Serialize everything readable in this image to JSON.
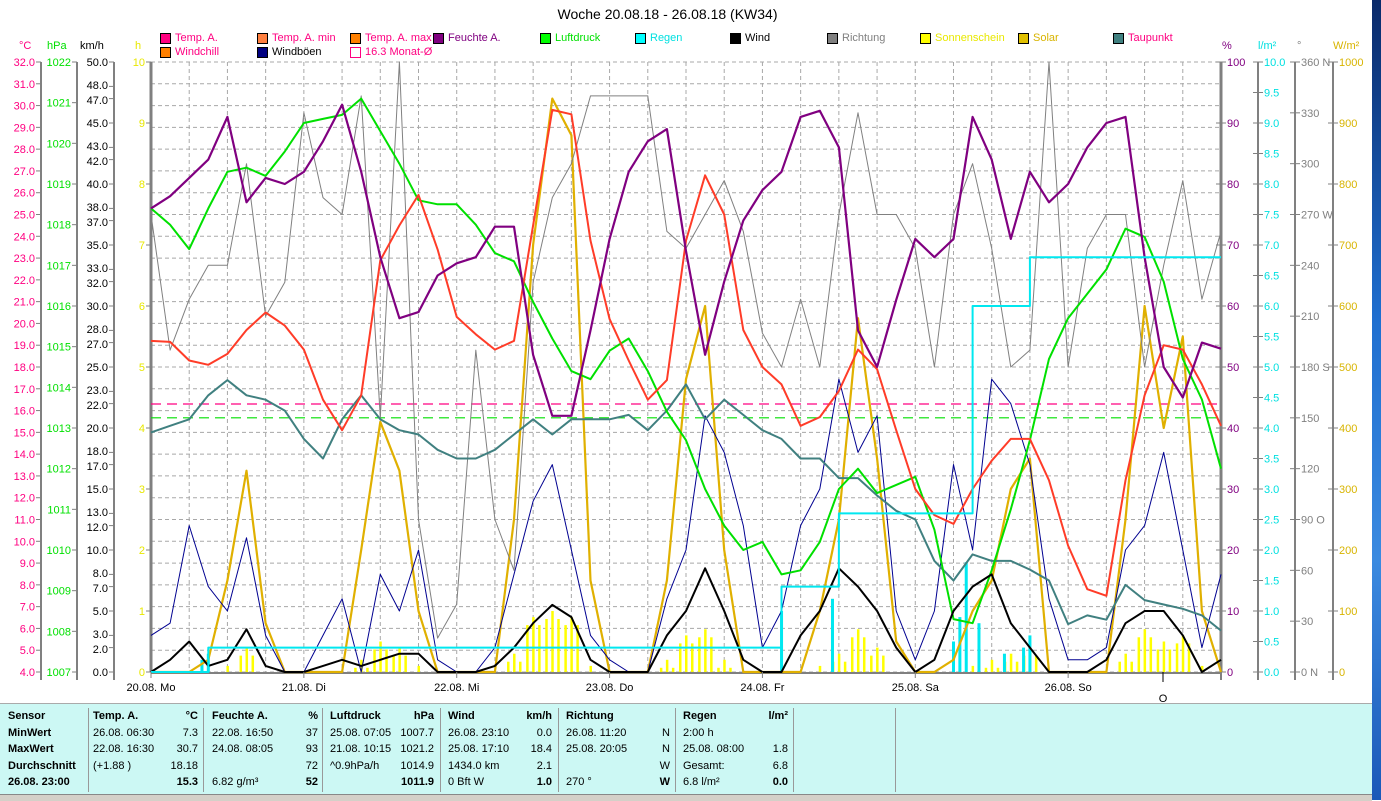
{
  "title": "Woche 20.08.18 - 26.08.18 (KW34)",
  "legend": [
    {
      "label": "Temp. A.",
      "swatch": "#ff0080",
      "text": "#ff0080"
    },
    {
      "label": "Temp. A. min",
      "swatch": "#ff8040",
      "text": "#ff0080"
    },
    {
      "label": "Temp. A. max",
      "swatch": "#ff8000",
      "text": "#ff0080"
    },
    {
      "label": "Feuchte A.",
      "swatch": "#800080",
      "text": "#800080"
    },
    {
      "label": "Luftdruck",
      "swatch": "#00ff00",
      "text": "#00e000"
    },
    {
      "label": "Regen",
      "swatch": "#00ffff",
      "text": "#00e0e0"
    },
    {
      "label": "Wind",
      "swatch": "#000000",
      "text": "#000000"
    },
    {
      "label": "Richtung",
      "swatch": "#808080",
      "text": "#808080"
    },
    {
      "label": "Sonnenschein",
      "swatch": "#ffff00",
      "text": "#e8e800"
    },
    {
      "label": "Solar",
      "swatch": "#e0c000",
      "text": "#d8b400"
    },
    {
      "label": "Taupunkt",
      "swatch": "#408080",
      "text": "#ff0080"
    },
    {
      "label": "Windchill",
      "swatch": "#ff8000",
      "text": "#ff0080"
    },
    {
      "label": "Windböen",
      "swatch": "#000080",
      "text": "#000000"
    },
    {
      "label": "16.3 Monat-Ø",
      "swatch": "#ffffff",
      "text": "#ff0080"
    }
  ],
  "chart_data": {
    "type": "line",
    "title": "Woche 20.08.18 - 26.08.18 (KW34)",
    "x_interval_hours": 3,
    "x_range_hours": [
      0,
      168
    ],
    "day_labels": [
      "20.08.  Mo",
      "21.08.  Di",
      "22.08.  Mi",
      "23.08.  Do",
      "24.08.  Fr",
      "25.08.  Sa",
      "26.08.  So"
    ],
    "marker": "O",
    "grid": true,
    "axes": [
      {
        "id": "temp",
        "unit": "°C",
        "min": 4,
        "max": 32,
        "color": "#ff0080",
        "ticks": [
          "32.0",
          "31.0",
          "30.0",
          "29.0",
          "28.0",
          "27.0",
          "26.0",
          "25.0",
          "24.0",
          "23.0",
          "22.0",
          "21.0",
          "20.0",
          "19.0",
          "18.0",
          "17.0",
          "16.0",
          "15.0",
          "14.0",
          "13.0",
          "12.0",
          "11.0",
          "10.0",
          "9.0",
          "8.0",
          "7.0",
          "6.0",
          "5.0",
          "4.0"
        ]
      },
      {
        "id": "pres",
        "unit": "hPa",
        "min": 1007,
        "max": 1022,
        "color": "#00e000",
        "ticks": [
          "1022",
          "1021",
          "1020",
          "1019",
          "1018",
          "1017",
          "1016",
          "1015",
          "1014",
          "1013",
          "1012",
          "1011",
          "1010",
          "1009",
          "1008",
          "1007"
        ]
      },
      {
        "id": "wind",
        "unit": "km/h",
        "min": 0,
        "max": 50,
        "color": "#000000",
        "ticks": [
          "50.0",
          "48.0",
          "47.0",
          "45.0",
          "43.0",
          "42.0",
          "40.0",
          "38.0",
          "37.0",
          "35.0",
          "33.0",
          "32.0",
          "30.0",
          "28.0",
          "27.0",
          "25.0",
          "23.0",
          "22.0",
          "20.0",
          "18.0",
          "17.0",
          "15.0",
          "13.0",
          "12.0",
          "10.0",
          "8.0",
          "7.0",
          "5.0",
          "3.0",
          "2.0",
          "0.0"
        ]
      },
      {
        "id": "sun",
        "unit": "h",
        "min": 0,
        "max": 10,
        "color": "#e8e800",
        "ticks": [
          "10",
          "9",
          "8",
          "7",
          "6",
          "5",
          "4",
          "3",
          "2",
          "1",
          "0"
        ]
      },
      {
        "id": "hum",
        "unit": "%",
        "min": 0,
        "max": 100,
        "color": "#800080",
        "ticks": [
          "100",
          "90",
          "80",
          "70",
          "60",
          "50",
          "40",
          "30",
          "20",
          "10",
          "0"
        ]
      },
      {
        "id": "rain",
        "unit": "l/m²",
        "min": 0,
        "max": 10,
        "color": "#00e0e0",
        "ticks": [
          "10.0",
          "9.5",
          "9.0",
          "8.5",
          "8.0",
          "7.5",
          "7.0",
          "6.5",
          "6.0",
          "5.5",
          "5.0",
          "4.5",
          "4.0",
          "3.5",
          "3.0",
          "2.5",
          "2.0",
          "1.5",
          "1.0",
          "0.5",
          "0.0"
        ]
      },
      {
        "id": "dir",
        "unit": "°",
        "min": 0,
        "max": 360,
        "color": "#808080",
        "ticks": [
          "360 N",
          "330",
          "300",
          "270 W",
          "240",
          "210",
          "180 S",
          "150",
          "120",
          "90  O",
          "60",
          "30",
          "0   N"
        ]
      },
      {
        "id": "solar",
        "unit": "W/m²",
        "min": 0,
        "max": 1000,
        "color": "#d8b400",
        "ticks": [
          "1000",
          "900",
          "800",
          "700",
          "600",
          "500",
          "400",
          "300",
          "200",
          "100",
          "0"
        ]
      }
    ],
    "reference_lines": [
      {
        "name": "Monat-Ø",
        "axis": "temp",
        "value": 16.3,
        "color": "#ff0080"
      },
      {
        "name": "Normaldruck",
        "axis": "pres",
        "value": 1013.25,
        "color": "#00e000"
      }
    ],
    "series": [
      {
        "name": "Solar",
        "axis": "solar",
        "color": "#e0b000",
        "width": 2.2,
        "values": [
          0,
          0,
          0,
          20,
          150,
          330,
          80,
          0,
          0,
          0,
          0,
          200,
          410,
          330,
          100,
          0,
          0,
          0,
          0,
          250,
          700,
          940,
          880,
          150,
          0,
          0,
          0,
          150,
          480,
          600,
          200,
          0,
          0,
          0,
          0,
          100,
          250,
          580,
          350,
          50,
          0,
          0,
          20,
          100,
          150,
          300,
          350,
          0,
          0,
          0,
          0,
          250,
          600,
          400,
          550,
          100,
          0
        ]
      },
      {
        "name": "Richtung",
        "axis": "dir",
        "color": "#808080",
        "width": 1,
        "values": [
          270,
          190,
          220,
          240,
          240,
          300,
          210,
          230,
          330,
          280,
          270,
          340,
          150,
          360,
          90,
          20,
          40,
          190,
          90,
          60,
          230,
          280,
          300,
          340,
          340,
          340,
          340,
          260,
          250,
          270,
          290,
          260,
          200,
          180,
          220,
          180,
          270,
          330,
          270,
          270,
          250,
          180,
          270,
          300,
          250,
          180,
          190,
          360,
          180,
          250,
          270,
          270,
          180,
          240,
          290,
          220,
          260
        ]
      },
      {
        "name": "Windböen",
        "axis": "wind",
        "color": "#000090",
        "width": 1,
        "values": [
          3,
          4,
          12,
          7,
          5,
          11,
          3,
          0,
          0,
          3,
          6,
          0,
          8,
          5,
          10,
          1,
          0,
          0,
          2,
          8,
          14,
          17,
          10,
          3,
          1,
          0,
          0,
          6,
          10,
          21,
          18,
          12,
          2,
          5,
          12,
          15,
          24,
          18,
          21,
          5,
          1,
          5,
          17,
          10,
          24,
          22,
          17,
          6,
          1,
          1,
          2,
          10,
          12,
          18,
          10,
          2,
          8
        ]
      },
      {
        "name": "Taupunkt",
        "axis": "temp",
        "color": "#408080",
        "width": 2,
        "values": [
          15.0,
          15.3,
          15.6,
          16.7,
          17.4,
          16.7,
          16.5,
          16.0,
          14.7,
          13.8,
          15.6,
          16.7,
          15.6,
          15.1,
          14.9,
          14.2,
          13.8,
          13.8,
          14.2,
          14.9,
          15.6,
          14.9,
          15.6,
          15.6,
          15.6,
          15.8,
          15.1,
          16.0,
          17.2,
          15.6,
          16.5,
          15.8,
          15.1,
          14.7,
          13.8,
          13.8,
          12.9,
          12.9,
          12.1,
          11.4,
          11.0,
          9.1,
          8.2,
          9.4,
          9.1,
          9.1,
          8.7,
          8.2,
          6.2,
          6.6,
          6.4,
          8.0,
          7.3,
          7.1,
          6.9,
          6.6,
          5.9
        ]
      },
      {
        "name": "Luftdruck",
        "axis": "pres",
        "color": "#00e000",
        "width": 2,
        "values": [
          1018.4,
          1018.0,
          1017.4,
          1018.4,
          1019.3,
          1019.4,
          1019.2,
          1019.8,
          1020.5,
          1020.6,
          1020.7,
          1021.1,
          1020.3,
          1019.5,
          1018.6,
          1018.5,
          1018.5,
          1018.0,
          1017.3,
          1017.1,
          1016.1,
          1015.2,
          1014.4,
          1014.2,
          1014.9,
          1015.2,
          1014.4,
          1013.4,
          1012.7,
          1011.5,
          1010.6,
          1010.0,
          1010.2,
          1009.4,
          1009.5,
          1010.2,
          1011.5,
          1012.0,
          1011.4,
          1011.6,
          1011.8,
          1010.5,
          1008.3,
          1008.2,
          1009.5,
          1011.0,
          1012.7,
          1014.7,
          1015.7,
          1016.3,
          1016.9,
          1017.9,
          1017.7,
          1016.6,
          1014.7,
          1013.7,
          1012.0
        ]
      },
      {
        "name": "Temp. A.",
        "axis": "temp",
        "color": "#ff3c28",
        "width": 2,
        "values": [
          19.2,
          19.15,
          18.3,
          18.1,
          18.6,
          19.7,
          20.5,
          19.9,
          18.8,
          16.5,
          15.1,
          16.7,
          22.9,
          24.5,
          25.9,
          23.4,
          20.3,
          19.5,
          18.8,
          19.2,
          24.5,
          29.8,
          29.6,
          23.8,
          20.2,
          18.3,
          16.5,
          17.4,
          23.8,
          26.8,
          25.0,
          19.7,
          18.0,
          17.2,
          15.3,
          15.7,
          16.9,
          18.8,
          17.9,
          15.1,
          12.4,
          11.2,
          10.8,
          12.4,
          13.7,
          14.7,
          14.7,
          12.8,
          9.8,
          7.8,
          7.5,
          12.8,
          16.7,
          19.0,
          18.8,
          17.2,
          15.3
        ]
      },
      {
        "name": "Feuchte A.",
        "axis": "hum",
        "color": "#800080",
        "width": 2.2,
        "values": [
          76,
          78,
          81,
          84,
          91,
          77,
          81,
          80,
          82,
          87,
          93,
          82,
          68,
          58,
          59,
          65,
          67,
          68,
          73,
          73,
          52,
          42,
          42,
          56,
          71,
          82,
          87,
          89,
          69,
          52,
          64,
          74,
          79,
          82,
          91,
          92,
          86,
          56,
          50,
          61,
          71,
          68,
          71,
          91,
          84,
          71,
          82,
          77,
          80,
          86,
          90,
          91,
          68,
          50,
          45,
          54,
          53
        ]
      },
      {
        "name": "Wind",
        "axis": "wind",
        "color": "#000000",
        "width": 2,
        "values": [
          0,
          1,
          2.5,
          0.5,
          1,
          3.5,
          0.5,
          0,
          0,
          0.5,
          1,
          0.5,
          1,
          1.5,
          1.5,
          0,
          0,
          0,
          0.5,
          2,
          4,
          5.5,
          4.5,
          1,
          0,
          0,
          0,
          3,
          5,
          8.5,
          5,
          1,
          0,
          0,
          3,
          5,
          8.5,
          7,
          5,
          2,
          0,
          1,
          5,
          7,
          8,
          4,
          2,
          0,
          0,
          0,
          1,
          4,
          5,
          5,
          3,
          0,
          1
        ]
      },
      {
        "name": "Regen",
        "axis": "rain",
        "color": "#00e8f0",
        "width": 2,
        "step": true,
        "values": [
          0,
          0,
          0,
          0.4,
          0.4,
          0.4,
          0.4,
          0.4,
          0.4,
          0.4,
          0.4,
          0.4,
          0.4,
          0.4,
          0.4,
          0.4,
          0.4,
          0.4,
          0.4,
          0.4,
          0.4,
          0.4,
          0.4,
          0.4,
          0.4,
          0.4,
          0.4,
          0.4,
          0.4,
          0.4,
          0.4,
          0.4,
          0.4,
          1.4,
          1.4,
          1.4,
          2.6,
          2.6,
          2.6,
          2.6,
          2.6,
          2.6,
          2.6,
          6.0,
          6.0,
          6.0,
          6.8,
          6.8,
          6.8,
          6.8,
          6.8,
          6.8,
          6.8,
          6.8,
          6.8,
          6.8,
          6.8
        ]
      }
    ],
    "sunshine_hours": [
      0,
      0,
      0,
      0,
      0.1,
      0.4,
      0,
      0,
      0,
      0,
      0,
      0.2,
      0.5,
      0.4,
      0.1,
      0,
      0,
      0,
      0,
      0.3,
      0.9,
      1.0,
      0.9,
      0.1,
      0,
      0,
      0,
      0.2,
      0.6,
      0.7,
      0.2,
      0,
      0,
      0,
      0,
      0.1,
      0.3,
      0.7,
      0.4,
      0,
      0,
      0,
      0,
      0.1,
      0.2,
      0.3,
      0.4,
      0,
      0,
      0,
      0,
      0.3,
      0.7,
      0.5,
      0.6,
      0.1,
      0
    ],
    "rain_hourly": [
      {
        "hour": 8,
        "value": 0.2
      },
      {
        "hour": 9,
        "value": 0.3
      },
      {
        "hour": 99,
        "value": 1.0
      },
      {
        "hour": 107,
        "value": 1.2
      },
      {
        "hour": 126,
        "value": 0.5
      },
      {
        "hour": 127,
        "value": 0.9
      },
      {
        "hour": 128,
        "value": 1.8
      },
      {
        "hour": 130,
        "value": 0.8
      },
      {
        "hour": 134,
        "value": 0.3
      },
      {
        "hour": 137,
        "value": 0.4
      },
      {
        "hour": 138,
        "value": 0.6
      }
    ]
  },
  "table": {
    "row_labels": [
      "Sensor",
      "MinWert",
      "MaxWert",
      "Durchschnitt",
      "26.08.  23:00"
    ],
    "columns": [
      {
        "title": "Temp. A.",
        "unit": "°C",
        "rows": [
          [
            "26.08.  06:30",
            "7.3"
          ],
          [
            "22.08.  16:30",
            "30.7"
          ],
          [
            "(+1.88 )",
            "18.18"
          ],
          [
            "",
            "15.3"
          ]
        ]
      },
      {
        "title": "Feuchte A.",
        "unit": "%",
        "rows": [
          [
            "22.08.  16:50",
            "37"
          ],
          [
            "24.08.  08:05",
            "93"
          ],
          [
            "",
            "72"
          ],
          [
            "6.82 g/m³",
            "52"
          ]
        ]
      },
      {
        "title": "Luftdruck",
        "unit": "hPa",
        "rows": [
          [
            "25.08.  07:05",
            "1007.7"
          ],
          [
            "21.08.  10:15",
            "1021.2"
          ],
          [
            "^0.9hPa/h",
            "1014.9"
          ],
          [
            "",
            "1011.9"
          ]
        ]
      },
      {
        "title": "Wind",
        "unit": "km/h",
        "rows": [
          [
            "26.08.  23:10",
            "0.0"
          ],
          [
            "25.08.  17:10",
            "18.4"
          ],
          [
            "1434.0 km",
            "2.1"
          ],
          [
            "0 Bft W",
            "1.0"
          ]
        ]
      },
      {
        "title": "Richtung",
        "unit": "",
        "rows": [
          [
            "26.08.  11:20",
            "N"
          ],
          [
            "25.08.  20:05",
            "N"
          ],
          [
            "",
            "W"
          ],
          [
            "270 °",
            "W"
          ]
        ]
      },
      {
        "title": "Regen",
        "unit": "l/m²",
        "rows": [
          [
            "2:00 h",
            ""
          ],
          [
            "25.08.  08:00",
            "1.8"
          ],
          [
            "Gesamt:",
            "6.8"
          ],
          [
            "6.8 l/m²",
            "0.0"
          ]
        ]
      }
    ]
  }
}
